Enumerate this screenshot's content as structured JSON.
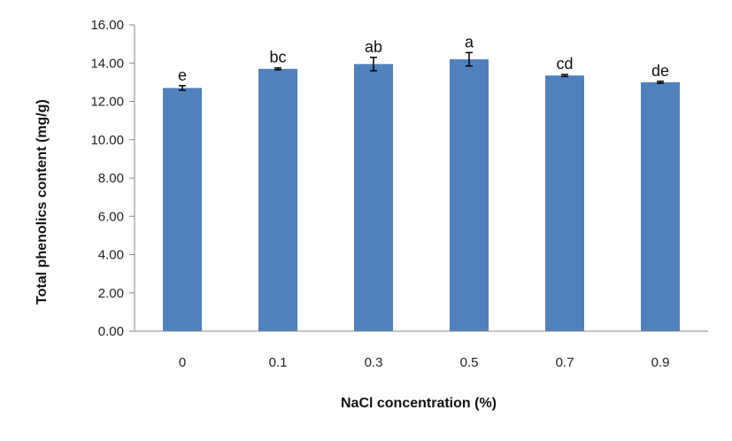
{
  "chart_data": {
    "type": "bar",
    "categories": [
      "0",
      "0.1",
      "0.3",
      "0.5",
      "0.7",
      "0.9"
    ],
    "values": [
      12.7,
      13.7,
      13.95,
      14.2,
      13.35,
      13.0
    ],
    "errors": [
      0.12,
      0.05,
      0.35,
      0.35,
      0.05,
      0.05
    ],
    "significance": [
      "e",
      "bc",
      "ab",
      "a",
      "cd",
      "de"
    ],
    "xlabel": "NaCl concentration (%)",
    "ylabel": "Total phenolics content (mg/g)",
    "ylim": [
      0,
      16
    ],
    "yticks": [
      "0.00",
      "2.00",
      "4.00",
      "6.00",
      "8.00",
      "10.00",
      "12.00",
      "14.00",
      "16.00"
    ],
    "bar_color": "#4f81bd",
    "grid": false,
    "legend": "none"
  }
}
